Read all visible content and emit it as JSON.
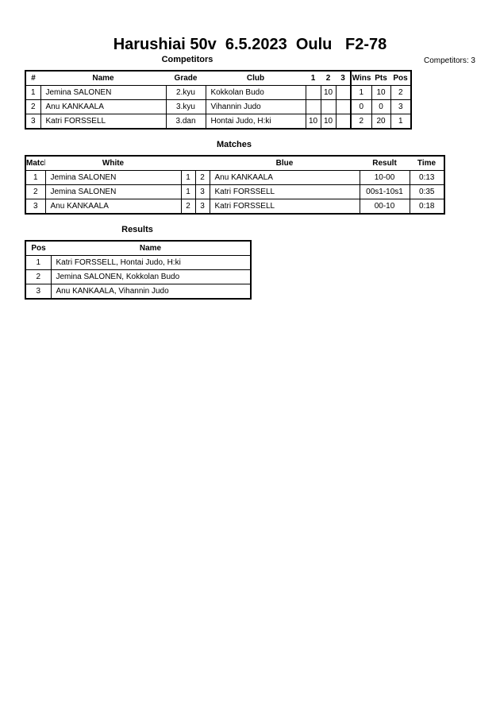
{
  "title": "Harushiai 50v  6.5.2023  Oulu   F2-78",
  "competitors": {
    "heading": "Competitors",
    "count_label": "Competitors: 3",
    "headers": [
      "#",
      "Name",
      "Grade",
      "Club",
      "1",
      "2",
      "3",
      "Wins",
      "Pts",
      "Pos"
    ],
    "rows": [
      [
        "1",
        "Jemina SALONEN",
        "2.kyu",
        "Kokkolan Budo",
        "",
        "10",
        "",
        "1",
        "10",
        "2"
      ],
      [
        "2",
        "Anu KANKAALA",
        "3.kyu",
        "Vihannin Judo",
        "",
        "",
        "",
        "0",
        "0",
        "3"
      ],
      [
        "3",
        "Katri FORSSELL",
        "3.dan",
        "Hontai Judo, H:ki",
        "10",
        "10",
        "",
        "2",
        "20",
        "1"
      ]
    ]
  },
  "matches": {
    "heading": "Matches",
    "headers": [
      "Match",
      "White",
      "",
      "",
      "Blue",
      "Result",
      "Time"
    ],
    "rows": [
      [
        "1",
        "Jemina SALONEN",
        "1",
        "2",
        "Anu KANKAALA",
        "10-00",
        "0:13"
      ],
      [
        "2",
        "Jemina SALONEN",
        "1",
        "3",
        "Katri FORSSELL",
        "00s1-10s1",
        "0:35"
      ],
      [
        "3",
        "Anu KANKAALA",
        "2",
        "3",
        "Katri FORSSELL",
        "00-10",
        "0:18"
      ]
    ]
  },
  "results": {
    "heading": "Results",
    "headers": [
      "Pos",
      "Name"
    ],
    "rows": [
      [
        "1",
        "Katri FORSSELL, Hontai Judo, H:ki"
      ],
      [
        "2",
        "Jemina SALONEN, Kokkolan Budo"
      ],
      [
        "3",
        "Anu KANKAALA, Vihannin Judo"
      ]
    ]
  }
}
